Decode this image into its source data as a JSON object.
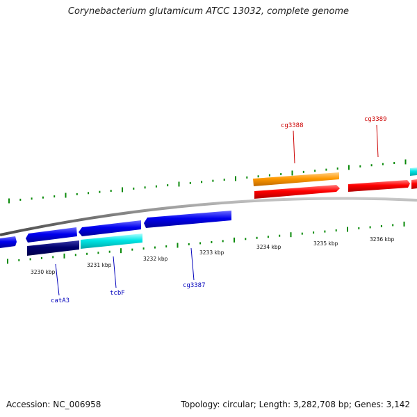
{
  "title": "Corynebacterium glutamicum ATCC 13032, complete genome",
  "footer": {
    "accession": "Accession: NC_006958",
    "summary": "Topology: circular; Length: 3,282,708 bp; Genes: 3,142"
  },
  "scale": {
    "labels": [
      "3230 kbp",
      "3231 kbp",
      "3232 kbp",
      "3233 kbp",
      "3234 kbp",
      "3235 kbp",
      "3236 kbp"
    ]
  },
  "genes": {
    "forward": [
      {
        "label": "cg3388",
        "color": "#ff9900"
      },
      {
        "label": "cg3389",
        "color": "#ff0000"
      }
    ],
    "reverse": [
      {
        "label": "catA3",
        "color": "#00007a"
      },
      {
        "label": "tcbF",
        "color": "#00e5e5"
      },
      {
        "label": "cg3387",
        "color": "#0000ee"
      }
    ]
  },
  "colors": {
    "backbone": "#888888",
    "ticks": "#0a8a0a",
    "forward_label": "#cc0000",
    "reverse_label": "#0000bb"
  }
}
